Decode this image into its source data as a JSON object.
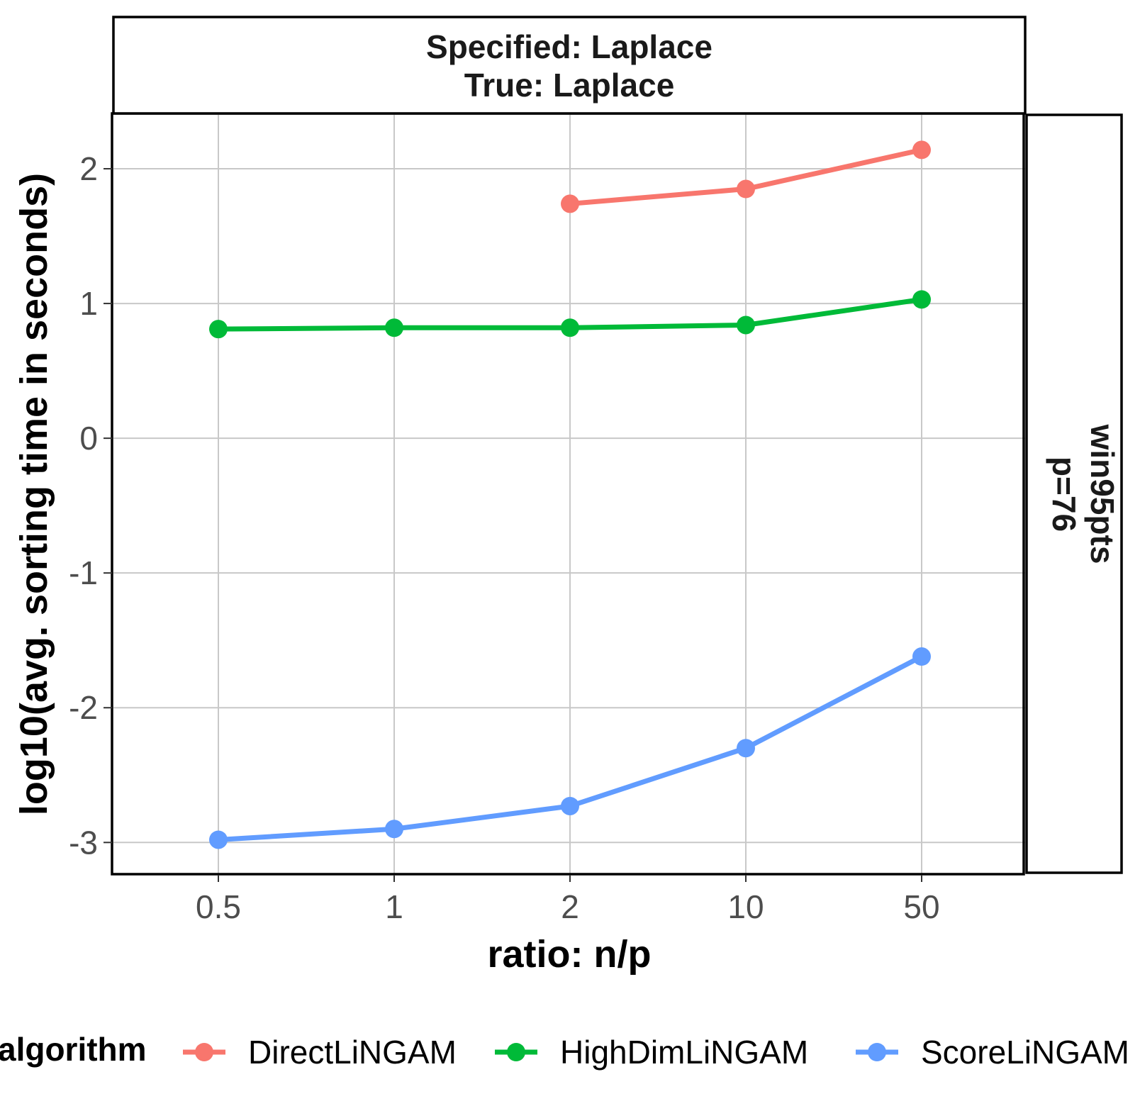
{
  "chart_data": {
    "type": "line",
    "facet_top": [
      "Specified:  Laplace",
      "True: Laplace"
    ],
    "facet_right": [
      "win95pts",
      "p=76"
    ],
    "categories": [
      "0.5",
      "1",
      "2",
      "10",
      "50"
    ],
    "xlabel": "ratio: n/p",
    "ylabel": "log10(avg. sorting time in seconds)",
    "yticks": [
      "2",
      "1",
      "0",
      "-1",
      "-2",
      "-3"
    ],
    "ylim": [
      -3.23,
      2.4
    ],
    "grid": true,
    "legend_position": "bottom",
    "legend_title": "algorithm",
    "series": [
      {
        "name": "DirectLiNGAM",
        "color": "#F8766D",
        "values": [
          null,
          null,
          1.74,
          1.85,
          2.14
        ]
      },
      {
        "name": "HighDimLiNGAM",
        "color": "#00BA38",
        "values": [
          0.81,
          0.82,
          0.82,
          0.84,
          1.03
        ]
      },
      {
        "name": "ScoreLiNGAM",
        "color": "#619CFF",
        "values": [
          -2.98,
          -2.9,
          -2.73,
          -2.3,
          -1.62
        ]
      }
    ]
  }
}
